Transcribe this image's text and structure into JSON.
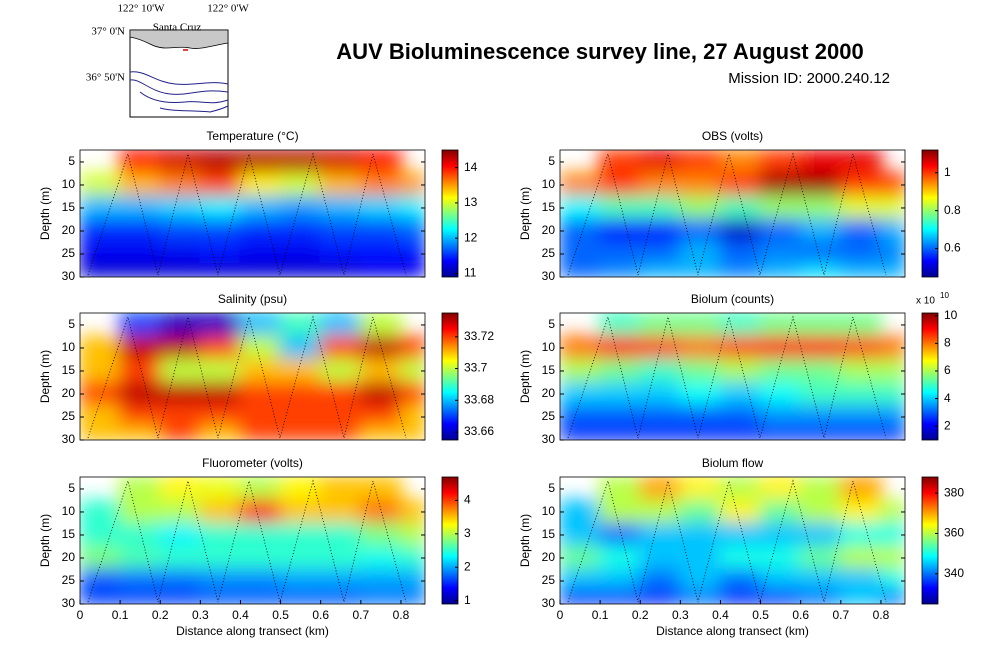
{
  "figure": {
    "title": "AUV Bioluminescence survey line, 27 August 2000",
    "subtitle": "Mission ID: 2000.240.12"
  },
  "map": {
    "lon_left": "122° 10'W",
    "lon_right": "122° 0'W",
    "lat_top": "37° 0'N",
    "lat_bottom": "36° 50'N",
    "place": "Santa Cruz"
  },
  "chart_data": [
    {
      "type": "heatmap",
      "title": "Temperature (°C)",
      "ylabel": "Depth (m)",
      "x": [
        0.05,
        0.15,
        0.25,
        0.35,
        0.45,
        0.55,
        0.65,
        0.75,
        0.85
      ],
      "y": [
        5,
        10,
        15,
        20,
        25,
        29
      ],
      "xlim": [
        0,
        0.86
      ],
      "ylim": [
        2.4,
        30
      ],
      "yticks": [
        5,
        10,
        15,
        20,
        25,
        30
      ],
      "clim": [
        10.9,
        14.5
      ],
      "cticks": [
        11,
        12,
        13,
        14
      ],
      "values": [
        [
          null,
          14,
          14.2,
          14.3,
          14.3,
          14.3,
          14.2,
          14,
          null
        ],
        [
          13,
          13.4,
          13.6,
          13.8,
          13.2,
          13,
          13.4,
          13.6,
          13.5
        ],
        [
          12,
          12,
          12.1,
          12.2,
          12,
          11.9,
          12,
          12.1,
          12.2
        ],
        [
          11.5,
          11.5,
          11.6,
          11.6,
          11.5,
          11.5,
          11.6,
          11.6,
          11.7
        ],
        [
          11.3,
          11.3,
          11.3,
          11.4,
          11.3,
          11.3,
          11.4,
          11.4,
          11.4
        ],
        [
          11.2,
          11.2,
          11.2,
          11.2,
          11.2,
          11.2,
          11.2,
          11.3,
          11.3
        ]
      ]
    },
    {
      "type": "heatmap",
      "title": "OBS (volts)",
      "ylabel": "Depth (m)",
      "x": [
        0.05,
        0.15,
        0.25,
        0.35,
        0.45,
        0.55,
        0.65,
        0.75,
        0.85
      ],
      "y": [
        5,
        10,
        15,
        20,
        25,
        29
      ],
      "xlim": [
        0,
        0.86
      ],
      "ylim": [
        2.4,
        30
      ],
      "yticks": [
        5,
        10,
        15,
        20,
        25,
        30
      ],
      "clim": [
        0.45,
        1.12
      ],
      "cticks": [
        0.6,
        0.8,
        1
      ],
      "values": [
        [
          null,
          1.0,
          1.05,
          1.0,
          0.95,
          1.0,
          1.05,
          1.05,
          null
        ],
        [
          0.95,
          1.0,
          0.95,
          0.95,
          1.0,
          1.1,
          1.1,
          1.0,
          1.0
        ],
        [
          0.7,
          0.75,
          0.75,
          0.8,
          0.75,
          0.8,
          0.8,
          0.85,
          0.85
        ],
        [
          0.6,
          0.55,
          0.55,
          0.6,
          0.5,
          0.6,
          0.65,
          0.6,
          0.65
        ],
        [
          0.6,
          0.6,
          0.6,
          0.65,
          0.6,
          0.62,
          0.6,
          0.6,
          0.62
        ],
        [
          0.6,
          0.62,
          0.65,
          0.65,
          0.62,
          0.65,
          0.68,
          0.65,
          0.65
        ]
      ]
    },
    {
      "type": "heatmap",
      "title": "Salinity (psu)",
      "ylabel": "Depth (m)",
      "x": [
        0.05,
        0.15,
        0.25,
        0.35,
        0.45,
        0.55,
        0.65,
        0.75,
        0.85
      ],
      "y": [
        5,
        10,
        15,
        20,
        25,
        29
      ],
      "xlim": [
        0,
        0.86
      ],
      "ylim": [
        2.4,
        30
      ],
      "yticks": [
        5,
        10,
        15,
        20,
        25,
        30
      ],
      "clim": [
        33.655,
        33.735
      ],
      "cticks": [
        33.66,
        33.68,
        33.7,
        33.72
      ],
      "values": [
        [
          null,
          33.67,
          33.66,
          33.66,
          33.68,
          33.69,
          33.68,
          33.7,
          null
        ],
        [
          33.71,
          33.73,
          33.73,
          33.72,
          33.7,
          33.68,
          33.72,
          33.73,
          33.72
        ],
        [
          33.71,
          33.72,
          33.7,
          33.7,
          33.71,
          33.71,
          33.7,
          33.71,
          33.7
        ],
        [
          33.72,
          33.73,
          33.73,
          33.73,
          33.72,
          33.72,
          33.72,
          33.73,
          33.72
        ],
        [
          33.71,
          33.72,
          33.72,
          33.72,
          33.72,
          33.72,
          33.72,
          33.72,
          33.71
        ],
        [
          33.71,
          33.71,
          33.72,
          33.71,
          33.72,
          33.72,
          33.72,
          33.71,
          33.71
        ]
      ]
    },
    {
      "type": "heatmap",
      "title": "Biolum (counts)",
      "ylabel": "Depth (m)",
      "x": [
        0.05,
        0.15,
        0.25,
        0.35,
        0.45,
        0.55,
        0.65,
        0.75,
        0.85
      ],
      "y": [
        5,
        10,
        15,
        20,
        25,
        29
      ],
      "xlim": [
        0,
        0.86
      ],
      "ylim": [
        2.4,
        30
      ],
      "yticks": [
        5,
        10,
        15,
        20,
        25,
        30
      ],
      "clim": [
        1,
        10.2
      ],
      "cticks": [
        2,
        4,
        6,
        8,
        10
      ],
      "cbar_exponent_label": "x 10",
      "cbar_exponent": "10",
      "values": [
        [
          null,
          5,
          5.5,
          5.5,
          5,
          5.5,
          5.5,
          5.5,
          null
        ],
        [
          8,
          9,
          8.5,
          8,
          8.5,
          9,
          9,
          8.5,
          8
        ],
        [
          6,
          5.5,
          5,
          5.5,
          6,
          5.5,
          5.5,
          6,
          6
        ],
        [
          4,
          4,
          4,
          4.5,
          4,
          4.5,
          5,
          5,
          5
        ],
        [
          3,
          3,
          3,
          3,
          3,
          3.5,
          3.5,
          3.5,
          3.5
        ],
        [
          2.5,
          2.5,
          2.5,
          2.5,
          2.5,
          2.5,
          2.5,
          2.5,
          2.5
        ]
      ]
    },
    {
      "type": "heatmap",
      "title": "Fluorometer (volts)",
      "ylabel": "Depth (m)",
      "xlabel": "Distance along transect (km)",
      "x": [
        0.05,
        0.15,
        0.25,
        0.35,
        0.45,
        0.55,
        0.65,
        0.75,
        0.85
      ],
      "y": [
        5,
        10,
        15,
        20,
        25,
        29
      ],
      "xlim": [
        0,
        0.86
      ],
      "ylim": [
        2.4,
        30
      ],
      "yticks": [
        5,
        10,
        15,
        20,
        25,
        30
      ],
      "xticks": [
        0,
        0.1,
        0.2,
        0.3,
        0.4,
        0.5,
        0.6,
        0.7,
        0.8
      ],
      "clim": [
        0.9,
        4.7
      ],
      "cticks": [
        1,
        2,
        3,
        4
      ],
      "values": [
        [
          null,
          3,
          3.3,
          3.2,
          3,
          3.3,
          3.5,
          3.5,
          null
        ],
        [
          2.5,
          3,
          3,
          3.5,
          4.2,
          3.5,
          3.5,
          3.8,
          3.5
        ],
        [
          2.5,
          2.5,
          2.3,
          2.5,
          2.5,
          2.5,
          2.5,
          2.8,
          3
        ],
        [
          2.8,
          2.6,
          2.5,
          2.5,
          2.5,
          2.5,
          2.5,
          2.4,
          2.5
        ],
        [
          1.7,
          1.8,
          1.8,
          1.9,
          1.9,
          2,
          2,
          2,
          2
        ],
        [
          1.6,
          1.6,
          1.6,
          1.7,
          1.7,
          1.7,
          1.7,
          1.8,
          1.8
        ]
      ]
    },
    {
      "type": "heatmap",
      "title": "Biolum flow",
      "ylabel": "Depth (m)",
      "xlabel": "Distance along transect (km)",
      "x": [
        0.05,
        0.15,
        0.25,
        0.35,
        0.45,
        0.55,
        0.65,
        0.75,
        0.85
      ],
      "y": [
        5,
        10,
        15,
        20,
        25,
        29
      ],
      "xlim": [
        0,
        0.86
      ],
      "ylim": [
        2.4,
        30
      ],
      "yticks": [
        5,
        10,
        15,
        20,
        25,
        30
      ],
      "xticks": [
        0,
        0.1,
        0.2,
        0.3,
        0.4,
        0.5,
        0.6,
        0.7,
        0.8
      ],
      "clim": [
        325,
        388
      ],
      "cticks": [
        340,
        360,
        380
      ],
      "values": [
        [
          null,
          360,
          370,
          365,
          360,
          365,
          360,
          370,
          null
        ],
        [
          345,
          360,
          360,
          355,
          365,
          355,
          360,
          365,
          360
        ],
        [
          345,
          340,
          345,
          345,
          345,
          345,
          345,
          350,
          350
        ],
        [
          355,
          350,
          345,
          345,
          350,
          350,
          355,
          360,
          360
        ],
        [
          345,
          345,
          340,
          345,
          340,
          345,
          345,
          345,
          350
        ],
        [
          335,
          335,
          335,
          340,
          335,
          335,
          340,
          345,
          340
        ]
      ]
    }
  ]
}
